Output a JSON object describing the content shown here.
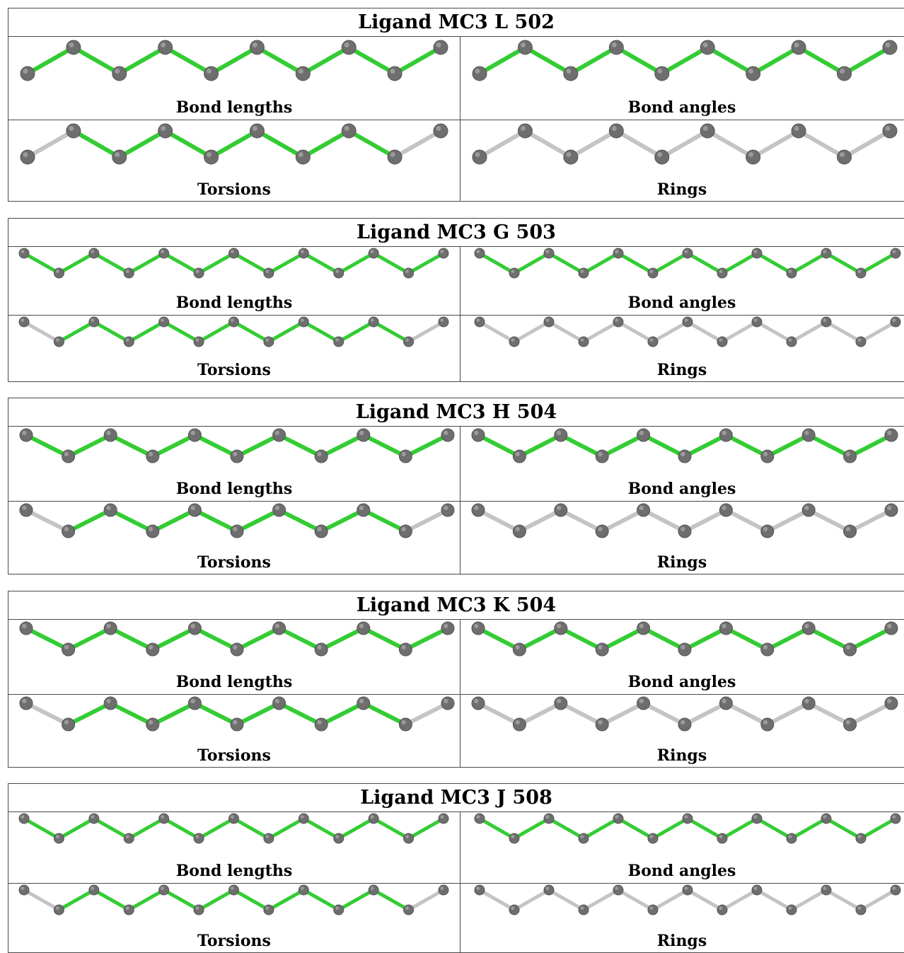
{
  "ligands": [
    {
      "title": "Ligand MC3 L 502",
      "panels": [
        {
          "label": "Bond lengths",
          "bond_colors": [
            "green",
            "green",
            "green",
            "green",
            "green",
            "green",
            "green",
            "green",
            "green"
          ]
        },
        {
          "label": "Bond angles",
          "bond_colors": [
            "green",
            "green",
            "green",
            "green",
            "green",
            "green",
            "green",
            "green",
            "green"
          ]
        },
        {
          "label": "Torsions",
          "bond_colors": [
            "grey",
            "green",
            "green",
            "green",
            "green",
            "green",
            "green",
            "green",
            "grey"
          ]
        },
        {
          "label": "Rings",
          "bond_colors": [
            "grey",
            "grey",
            "grey",
            "grey",
            "grey",
            "grey",
            "grey",
            "grey",
            "grey"
          ]
        }
      ]
    },
    {
      "title": "Ligand MC3 G 503",
      "panels": [
        {
          "label": "Bond lengths",
          "bond_colors": [
            "green",
            "green",
            "green",
            "green",
            "green",
            "green",
            "green",
            "green",
            "green",
            "green",
            "green",
            "green"
          ]
        },
        {
          "label": "Bond angles",
          "bond_colors": [
            "green",
            "green",
            "green",
            "green",
            "green",
            "green",
            "green",
            "green",
            "green",
            "green",
            "green",
            "green"
          ]
        },
        {
          "label": "Torsions",
          "bond_colors": [
            "grey",
            "green",
            "green",
            "green",
            "green",
            "green",
            "green",
            "green",
            "green",
            "green",
            "green",
            "grey"
          ]
        },
        {
          "label": "Rings",
          "bond_colors": [
            "grey",
            "grey",
            "grey",
            "grey",
            "grey",
            "grey",
            "grey",
            "grey",
            "grey",
            "grey",
            "grey",
            "grey"
          ]
        }
      ]
    },
    {
      "title": "Ligand MC3 H 504",
      "panels": [
        {
          "label": "Bond lengths",
          "bond_colors": [
            "green",
            "green",
            "green",
            "green",
            "green",
            "green",
            "green",
            "green",
            "green",
            "green"
          ]
        },
        {
          "label": "Bond angles",
          "bond_colors": [
            "green",
            "green",
            "green",
            "green",
            "green",
            "green",
            "green",
            "green",
            "green",
            "green"
          ]
        },
        {
          "label": "Torsions",
          "bond_colors": [
            "grey",
            "green",
            "green",
            "green",
            "green",
            "green",
            "green",
            "green",
            "green",
            "grey"
          ]
        },
        {
          "label": "Rings",
          "bond_colors": [
            "grey",
            "grey",
            "grey",
            "grey",
            "grey",
            "grey",
            "grey",
            "grey",
            "grey",
            "grey"
          ]
        }
      ]
    },
    {
      "title": "Ligand MC3 K 504",
      "panels": [
        {
          "label": "Bond lengths",
          "bond_colors": [
            "green",
            "green",
            "green",
            "green",
            "green",
            "green",
            "green",
            "green",
            "green",
            "green"
          ]
        },
        {
          "label": "Bond angles",
          "bond_colors": [
            "green",
            "green",
            "green",
            "green",
            "green",
            "green",
            "green",
            "green",
            "green",
            "green"
          ]
        },
        {
          "label": "Torsions",
          "bond_colors": [
            "grey",
            "green",
            "green",
            "green",
            "green",
            "green",
            "green",
            "green",
            "green",
            "grey"
          ]
        },
        {
          "label": "Rings",
          "bond_colors": [
            "grey",
            "grey",
            "grey",
            "grey",
            "grey",
            "grey",
            "grey",
            "grey",
            "grey",
            "grey"
          ]
        }
      ]
    },
    {
      "title": "Ligand MC3 J 508",
      "panels": [
        {
          "label": "Bond lengths",
          "bond_colors": [
            "green",
            "green",
            "green",
            "green",
            "green",
            "green",
            "green",
            "green",
            "green",
            "green",
            "green",
            "green"
          ]
        },
        {
          "label": "Bond angles",
          "bond_colors": [
            "green",
            "green",
            "green",
            "green",
            "green",
            "green",
            "green",
            "green",
            "green",
            "green",
            "green",
            "green"
          ]
        },
        {
          "label": "Torsions",
          "bond_colors": [
            "grey",
            "green",
            "green",
            "green",
            "green",
            "green",
            "green",
            "green",
            "green",
            "green",
            "green",
            "grey"
          ]
        },
        {
          "label": "Rings",
          "bond_colors": [
            "grey",
            "grey",
            "grey",
            "grey",
            "grey",
            "grey",
            "grey",
            "grey",
            "grey",
            "grey",
            "grey",
            "grey"
          ]
        }
      ]
    }
  ],
  "colors": {
    "green_bond": "#33cc33",
    "grey_bond": "#c4c4c4",
    "atom": "#6e6e6e",
    "border": "#4a4a4a"
  }
}
